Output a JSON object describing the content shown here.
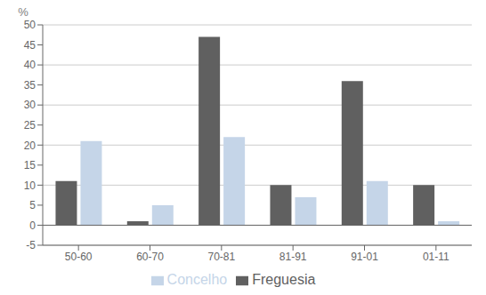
{
  "chart_data": {
    "type": "bar",
    "ylabel": "%",
    "categories": [
      "50-60",
      "60-70",
      "70-81",
      "81-91",
      "91-01",
      "01-11"
    ],
    "series": [
      {
        "name": "Freguesia",
        "color": "#606060",
        "values": [
          11,
          1,
          47,
          10,
          36,
          10
        ]
      },
      {
        "name": "Concelho",
        "color": "#c5d5e8",
        "values": [
          21,
          5,
          22,
          7,
          11,
          1
        ]
      }
    ],
    "ylim": [
      -5,
      50
    ],
    "yticks": [
      -5,
      0,
      5,
      10,
      15,
      20,
      25,
      30,
      35,
      40,
      45,
      50
    ],
    "grid": true,
    "legend": "bottom"
  }
}
